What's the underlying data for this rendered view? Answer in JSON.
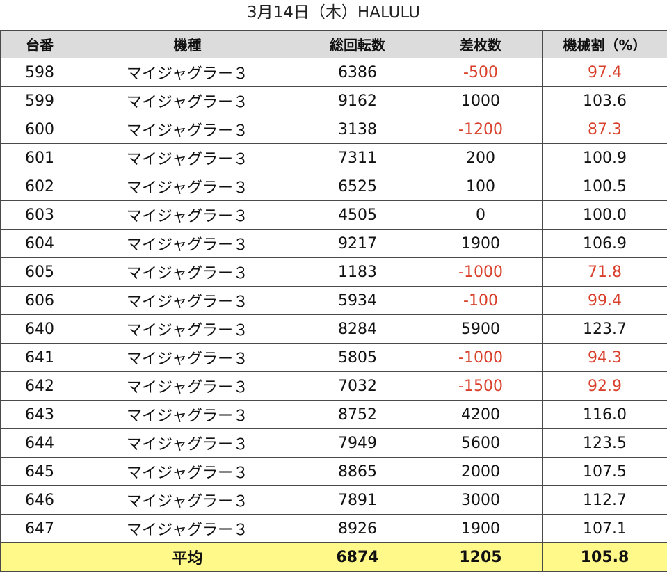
{
  "title": "3月14日（木）HALULU",
  "colors": {
    "header_bg": "#dcdcdc",
    "footer_bg": "#fff98a",
    "negative_text": "#d9402b",
    "border": "#4a4a4a"
  },
  "table": {
    "headers": [
      "台番",
      "機種",
      "総回転数",
      "差枚数",
      "機械割（%）"
    ],
    "rows": [
      {
        "unit": "598",
        "model": "マイジャグラー３",
        "spins": "6386",
        "diff": "-500",
        "rate": "97.4",
        "negative": true
      },
      {
        "unit": "599",
        "model": "マイジャグラー３",
        "spins": "9162",
        "diff": "1000",
        "rate": "103.6",
        "negative": false
      },
      {
        "unit": "600",
        "model": "マイジャグラー３",
        "spins": "3138",
        "diff": "-1200",
        "rate": "87.3",
        "negative": true
      },
      {
        "unit": "601",
        "model": "マイジャグラー３",
        "spins": "7311",
        "diff": "200",
        "rate": "100.9",
        "negative": false
      },
      {
        "unit": "602",
        "model": "マイジャグラー３",
        "spins": "6525",
        "diff": "100",
        "rate": "100.5",
        "negative": false
      },
      {
        "unit": "603",
        "model": "マイジャグラー３",
        "spins": "4505",
        "diff": "0",
        "rate": "100.0",
        "negative": false
      },
      {
        "unit": "604",
        "model": "マイジャグラー３",
        "spins": "9217",
        "diff": "1900",
        "rate": "106.9",
        "negative": false
      },
      {
        "unit": "605",
        "model": "マイジャグラー３",
        "spins": "1183",
        "diff": "-1000",
        "rate": "71.8",
        "negative": true
      },
      {
        "unit": "606",
        "model": "マイジャグラー３",
        "spins": "5934",
        "diff": "-100",
        "rate": "99.4",
        "negative": true
      },
      {
        "unit": "640",
        "model": "マイジャグラー３",
        "spins": "8284",
        "diff": "5900",
        "rate": "123.7",
        "negative": false
      },
      {
        "unit": "641",
        "model": "マイジャグラー３",
        "spins": "5805",
        "diff": "-1000",
        "rate": "94.3",
        "negative": true
      },
      {
        "unit": "642",
        "model": "マイジャグラー３",
        "spins": "7032",
        "diff": "-1500",
        "rate": "92.9",
        "negative": true
      },
      {
        "unit": "643",
        "model": "マイジャグラー３",
        "spins": "8752",
        "diff": "4200",
        "rate": "116.0",
        "negative": false
      },
      {
        "unit": "644",
        "model": "マイジャグラー３",
        "spins": "7949",
        "diff": "5600",
        "rate": "123.5",
        "negative": false
      },
      {
        "unit": "645",
        "model": "マイジャグラー３",
        "spins": "8865",
        "diff": "2000",
        "rate": "107.5",
        "negative": false
      },
      {
        "unit": "646",
        "model": "マイジャグラー３",
        "spins": "7891",
        "diff": "3000",
        "rate": "112.7",
        "negative": false
      },
      {
        "unit": "647",
        "model": "マイジャグラー３",
        "spins": "8926",
        "diff": "1900",
        "rate": "107.1",
        "negative": false
      }
    ],
    "footer": {
      "unit": "",
      "label": "平均",
      "spins": "6874",
      "diff": "1205",
      "rate": "105.8"
    }
  }
}
